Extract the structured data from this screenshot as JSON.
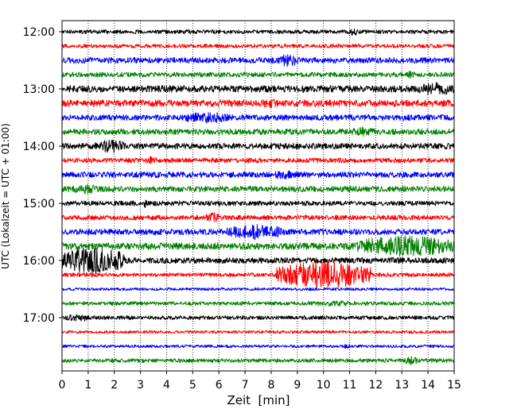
{
  "chart_data": {
    "type": "line",
    "title": "",
    "xlabel": "Zeit  [min]",
    "ylabel": "UTC (Lokalzeit = UTC + 01:00)",
    "xlim": [
      0,
      15
    ],
    "x_ticks": [
      0,
      1,
      2,
      3,
      4,
      5,
      6,
      7,
      8,
      9,
      10,
      11,
      12,
      13,
      14,
      15
    ],
    "y_tick_labels": [
      "12:00",
      "13:00",
      "14:00",
      "15:00",
      "16:00",
      "17:00"
    ],
    "grid": "vertical dotted lines at each minute",
    "trace_interval_minutes": 15,
    "trace_colors": [
      "#000000",
      "#ff0000",
      "#0000ff",
      "#008000"
    ],
    "series": [
      {
        "start": "12:00",
        "amplitude": 0.04,
        "bursts": [
          {
            "from": 11.0,
            "to": 11.3,
            "amp": 0.08
          }
        ]
      },
      {
        "start": "12:15",
        "amplitude": 0.04,
        "bursts": []
      },
      {
        "start": "12:30",
        "amplitude": 0.06,
        "bursts": [
          {
            "from": 8.3,
            "to": 9.1,
            "amp": 0.14
          }
        ]
      },
      {
        "start": "12:45",
        "amplitude": 0.05,
        "bursts": [
          {
            "from": 13.2,
            "to": 13.5,
            "amp": 0.09
          }
        ]
      },
      {
        "start": "13:00",
        "amplitude": 0.07,
        "bursts": [
          {
            "from": 13.6,
            "to": 15.0,
            "amp": 0.14
          }
        ]
      },
      {
        "start": "13:15",
        "amplitude": 0.07,
        "bursts": [
          {
            "from": 7.5,
            "to": 8.5,
            "amp": 0.1
          }
        ]
      },
      {
        "start": "13:30",
        "amplitude": 0.06,
        "bursts": [
          {
            "from": 4.5,
            "to": 6.5,
            "amp": 0.12
          }
        ]
      },
      {
        "start": "13:45",
        "amplitude": 0.06,
        "bursts": [
          {
            "from": 11.0,
            "to": 12.0,
            "amp": 0.1
          }
        ]
      },
      {
        "start": "14:00",
        "amplitude": 0.06,
        "bursts": [
          {
            "from": 1.2,
            "to": 2.5,
            "amp": 0.14
          }
        ]
      },
      {
        "start": "14:15",
        "amplitude": 0.05,
        "bursts": [
          {
            "from": 3.2,
            "to": 3.6,
            "amp": 0.09
          }
        ]
      },
      {
        "start": "14:30",
        "amplitude": 0.06,
        "bursts": [
          {
            "from": 8.0,
            "to": 9.0,
            "amp": 0.1
          }
        ]
      },
      {
        "start": "14:45",
        "amplitude": 0.06,
        "bursts": [
          {
            "from": 0.3,
            "to": 1.5,
            "amp": 0.1
          }
        ]
      },
      {
        "start": "15:00",
        "amplitude": 0.05,
        "bursts": [
          {
            "from": 3.1,
            "to": 3.3,
            "amp": 0.1
          }
        ]
      },
      {
        "start": "15:15",
        "amplitude": 0.05,
        "bursts": [
          {
            "from": 5.5,
            "to": 6.0,
            "amp": 0.12
          }
        ]
      },
      {
        "start": "15:30",
        "amplitude": 0.06,
        "bursts": [
          {
            "from": 6.3,
            "to": 8.5,
            "amp": 0.16
          }
        ]
      },
      {
        "start": "15:45",
        "amplitude": 0.07,
        "bursts": [
          {
            "from": 11.3,
            "to": 15.0,
            "amp": 0.22
          }
        ]
      },
      {
        "start": "16:00",
        "amplitude": 0.06,
        "bursts": [
          {
            "from": 0.0,
            "to": 2.4,
            "amp": 0.28
          }
        ]
      },
      {
        "start": "16:15",
        "amplitude": 0.04,
        "bursts": [
          {
            "from": 8.2,
            "to": 11.8,
            "amp": 0.28
          }
        ]
      },
      {
        "start": "16:30",
        "amplitude": 0.03,
        "bursts": []
      },
      {
        "start": "16:45",
        "amplitude": 0.04,
        "bursts": [
          {
            "from": 9.5,
            "to": 11.5,
            "amp": 0.06
          }
        ]
      },
      {
        "start": "17:00",
        "amplitude": 0.04,
        "bursts": [
          {
            "from": 0.1,
            "to": 1.2,
            "amp": 0.08
          }
        ]
      },
      {
        "start": "17:15",
        "amplitude": 0.03,
        "bursts": []
      },
      {
        "start": "17:30",
        "amplitude": 0.03,
        "bursts": [
          {
            "from": 10.8,
            "to": 11.0,
            "amp": 0.06
          }
        ]
      },
      {
        "start": "17:45",
        "amplitude": 0.04,
        "bursts": [
          {
            "from": 13.1,
            "to": 13.6,
            "amp": 0.1
          }
        ]
      }
    ]
  }
}
